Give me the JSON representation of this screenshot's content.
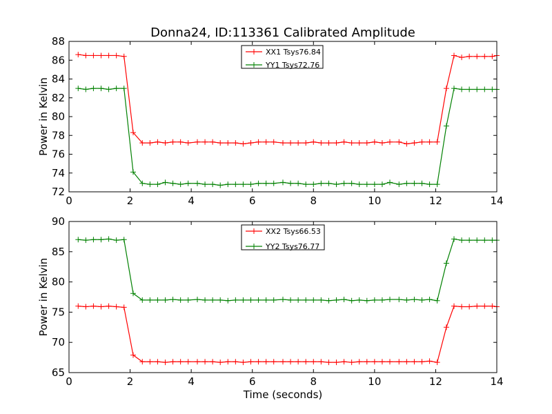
{
  "figure": {
    "title": "Donna24, ID:113361 Calibrated Amplitude",
    "xlabel": "Time (seconds)"
  },
  "chart_data": [
    {
      "type": "line",
      "title": "Donna24, ID:113361 Calibrated Amplitude",
      "xlabel": "",
      "ylabel": "Power in Kelvin",
      "xlim": [
        0,
        14
      ],
      "ylim": [
        72,
        88
      ],
      "xticks": [
        0,
        2,
        4,
        6,
        8,
        10,
        12,
        14
      ],
      "yticks": [
        72,
        74,
        76,
        78,
        80,
        82,
        84,
        86,
        88
      ],
      "grid": false,
      "legend_position": "top-center",
      "x": [
        0.3,
        0.55,
        0.8,
        1.05,
        1.3,
        1.55,
        1.8,
        2.1,
        2.4,
        2.65,
        2.9,
        3.15,
        3.4,
        3.65,
        3.9,
        4.2,
        4.45,
        4.7,
        4.95,
        5.2,
        5.45,
        5.7,
        5.95,
        6.2,
        6.45,
        6.7,
        7.0,
        7.25,
        7.5,
        7.75,
        8.0,
        8.25,
        8.5,
        8.75,
        9.0,
        9.25,
        9.5,
        9.75,
        10.0,
        10.25,
        10.5,
        10.8,
        11.05,
        11.3,
        11.55,
        11.8,
        12.05,
        12.35,
        12.6,
        12.85,
        13.1,
        13.35,
        13.6,
        13.85,
        14.0
      ],
      "series": [
        {
          "name": "XX1 Tsys76.84",
          "color": "#ff0000",
          "values": [
            86.6,
            86.5,
            86.5,
            86.5,
            86.5,
            86.5,
            86.4,
            78.3,
            77.2,
            77.2,
            77.3,
            77.2,
            77.3,
            77.3,
            77.2,
            77.3,
            77.3,
            77.3,
            77.2,
            77.2,
            77.2,
            77.1,
            77.2,
            77.3,
            77.3,
            77.3,
            77.2,
            77.2,
            77.2,
            77.2,
            77.3,
            77.2,
            77.2,
            77.2,
            77.3,
            77.2,
            77.2,
            77.2,
            77.3,
            77.2,
            77.3,
            77.3,
            77.1,
            77.2,
            77.3,
            77.3,
            77.3,
            83.0,
            86.5,
            86.3,
            86.4,
            86.4,
            86.4,
            86.4,
            86.5
          ]
        },
        {
          "name": "YY1 Tsys72.76",
          "color": "#008000",
          "values": [
            83.0,
            82.9,
            83.0,
            83.0,
            82.9,
            83.0,
            83.0,
            74.1,
            72.9,
            72.8,
            72.8,
            73.0,
            72.9,
            72.8,
            72.9,
            72.9,
            72.8,
            72.8,
            72.7,
            72.8,
            72.8,
            72.8,
            72.8,
            72.9,
            72.9,
            72.9,
            73.0,
            72.9,
            72.9,
            72.8,
            72.8,
            72.9,
            72.9,
            72.8,
            72.9,
            72.9,
            72.8,
            72.8,
            72.8,
            72.8,
            73.0,
            72.8,
            72.9,
            72.9,
            72.9,
            72.8,
            72.8,
            79.0,
            83.0,
            82.9,
            82.9,
            82.9,
            82.9,
            82.9,
            82.9
          ]
        }
      ]
    },
    {
      "type": "line",
      "title": "",
      "xlabel": "Time (seconds)",
      "ylabel": "Power in Kelvin",
      "xlim": [
        0,
        14
      ],
      "ylim": [
        65,
        90
      ],
      "xticks": [
        0,
        2,
        4,
        6,
        8,
        10,
        12,
        14
      ],
      "yticks": [
        65,
        70,
        75,
        80,
        85,
        90
      ],
      "grid": false,
      "legend_position": "top-center",
      "x": [
        0.3,
        0.55,
        0.8,
        1.05,
        1.3,
        1.55,
        1.8,
        2.1,
        2.4,
        2.65,
        2.9,
        3.15,
        3.4,
        3.65,
        3.9,
        4.2,
        4.45,
        4.7,
        4.95,
        5.2,
        5.45,
        5.7,
        5.95,
        6.2,
        6.45,
        6.7,
        7.0,
        7.25,
        7.5,
        7.75,
        8.0,
        8.25,
        8.5,
        8.75,
        9.0,
        9.25,
        9.5,
        9.75,
        10.0,
        10.25,
        10.5,
        10.8,
        11.05,
        11.3,
        11.55,
        11.8,
        12.05,
        12.35,
        12.6,
        12.85,
        13.1,
        13.35,
        13.6,
        13.85,
        14.0
      ],
      "series": [
        {
          "name": "XX2 Tsys66.53",
          "color": "#ff0000",
          "values": [
            76.0,
            75.9,
            76.0,
            75.9,
            76.0,
            75.9,
            75.8,
            67.9,
            66.8,
            66.8,
            66.8,
            66.7,
            66.8,
            66.8,
            66.8,
            66.8,
            66.8,
            66.8,
            66.7,
            66.8,
            66.8,
            66.7,
            66.8,
            66.8,
            66.8,
            66.8,
            66.8,
            66.8,
            66.8,
            66.8,
            66.8,
            66.8,
            66.7,
            66.7,
            66.8,
            66.7,
            66.8,
            66.8,
            66.8,
            66.8,
            66.8,
            66.8,
            66.8,
            66.8,
            66.8,
            66.9,
            66.7,
            72.5,
            76.0,
            75.9,
            75.9,
            76.0,
            76.0,
            76.0,
            75.9
          ]
        },
        {
          "name": "YY2 Tsys76.77",
          "color": "#008000",
          "values": [
            87.0,
            86.9,
            87.0,
            87.0,
            87.1,
            86.9,
            87.0,
            78.1,
            77.0,
            77.0,
            77.0,
            77.0,
            77.1,
            77.0,
            77.0,
            77.1,
            77.0,
            77.0,
            77.0,
            76.9,
            77.0,
            77.0,
            77.0,
            77.0,
            77.0,
            77.0,
            77.1,
            77.0,
            77.0,
            77.0,
            77.0,
            77.0,
            76.9,
            77.0,
            77.1,
            76.9,
            77.0,
            76.9,
            77.0,
            77.0,
            77.1,
            77.1,
            77.0,
            77.1,
            77.0,
            77.1,
            76.9,
            83.1,
            87.1,
            86.9,
            86.9,
            86.9,
            86.9,
            86.9,
            86.9
          ]
        }
      ]
    }
  ]
}
